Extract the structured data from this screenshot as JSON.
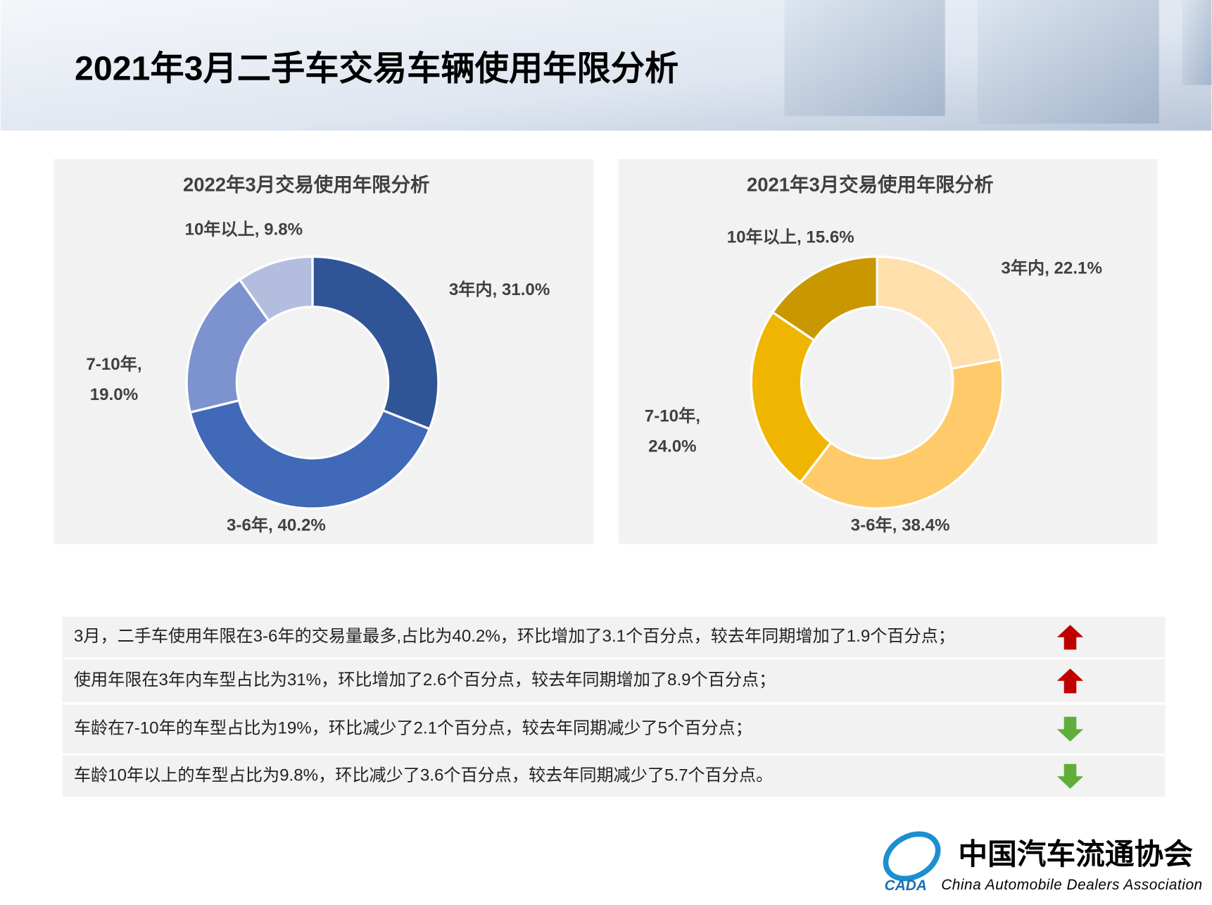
{
  "header": {
    "title": "2021年3月二手车交易车辆使用年限分析"
  },
  "chart_data": [
    {
      "type": "donut",
      "title": "2022年3月交易使用年限分析",
      "values": [
        31.0,
        40.2,
        19.0,
        9.8
      ],
      "value_labels": [
        "3年内, 31.0%",
        "3-6年, 40.2%",
        "7-10年, 19.0%",
        "10年以上, 9.8%"
      ],
      "colors": [
        "#2f5597",
        "#4069b8",
        "#7d93cf",
        "#b3bedf"
      ]
    },
    {
      "type": "donut",
      "title": "2021年3月交易使用年限分析",
      "values": [
        22.1,
        38.4,
        24.0,
        15.6
      ],
      "value_labels": [
        "3年内, 22.1%",
        "3-6年, 38.4%",
        "7-10年, 24.0%",
        "10年以上, 15.6%"
      ],
      "colors": [
        "#ffdfab",
        "#ffca6a",
        "#efb500",
        "#c99700"
      ]
    }
  ],
  "notes": [
    {
      "text": "3月，二手车使用年限在3-6年的交易量最多,占比为40.2%，环比增加了3.1个百分点，较去年同期增加了1.9个百分点；",
      "trend": "up"
    },
    {
      "text": "使用年限在3年内车型占比为31%，环比增加了2.6个百分点，较去年同期增加了8.9个百分点；",
      "trend": "up"
    },
    {
      "text": "车龄在7-10年的车型占比为19%，环比减少了2.1个百分点，较去年同期减少了5个百分点；",
      "trend": "down"
    },
    {
      "text": "车龄10年以上的车型占比为9.8%，环比减少了3.6个百分点，较去年同期减少了5.7个百分点。",
      "trend": "down"
    }
  ],
  "logo": {
    "mark": "CADA",
    "name": "中国汽车流通协会",
    "english": "China Automobile Dealers Association"
  }
}
